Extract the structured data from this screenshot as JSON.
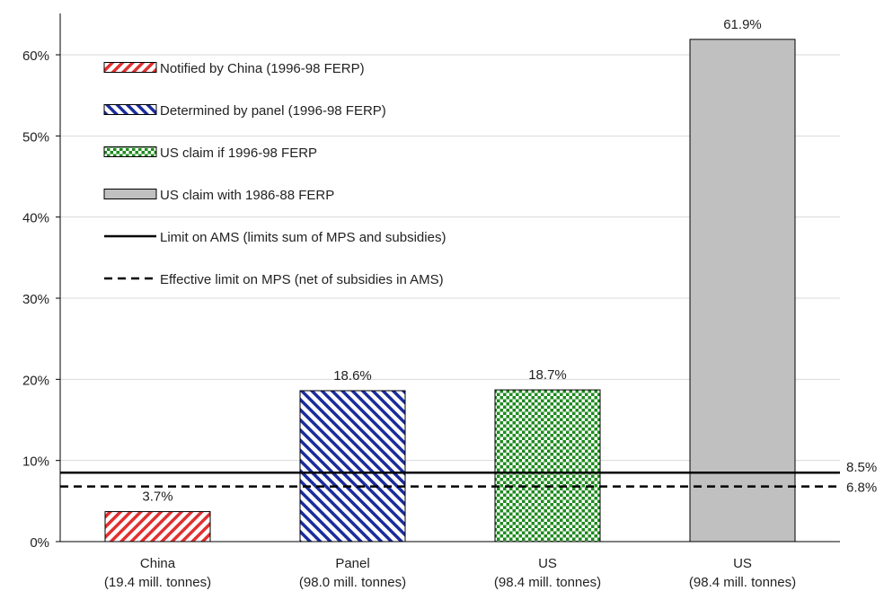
{
  "chart_data": {
    "type": "bar",
    "categories": [
      [
        "China",
        "(19.4 mill. tonnes)"
      ],
      [
        "Panel",
        "(98.0 mill. tonnes)"
      ],
      [
        "US",
        "(98.4 mill. tonnes)"
      ],
      [
        "US",
        "(98.4 mill. tonnes)"
      ]
    ],
    "values": [
      3.7,
      18.6,
      18.7,
      61.9
    ],
    "value_labels": [
      "3.7%",
      "18.6%",
      "18.7%",
      "61.9%"
    ],
    "bar_styles": [
      {
        "pattern": "diag-forward",
        "color": "#e03030"
      },
      {
        "pattern": "diag-back",
        "color": "#1a2c9c"
      },
      {
        "pattern": "checker",
        "color": "#1e8a1e"
      },
      {
        "pattern": "solid",
        "color": "#c0c0c0"
      }
    ],
    "ylim": [
      0,
      65
    ],
    "yticks": [
      0,
      10,
      20,
      30,
      40,
      50,
      60
    ],
    "ytick_labels": [
      "0%",
      "10%",
      "20%",
      "30%",
      "40%",
      "50%",
      "60%"
    ],
    "grid": true,
    "reference_lines": [
      {
        "value": 8.5,
        "label": "8.5%",
        "style": "solid"
      },
      {
        "value": 6.8,
        "label": "6.8%",
        "style": "dashed"
      }
    ],
    "legend": {
      "position": "top-left",
      "entries": [
        {
          "label": "Notified by China (1996-98 FERP)",
          "symbol": "diag-forward",
          "color": "#e03030"
        },
        {
          "label": "Determined by panel (1996-98 FERP)",
          "symbol": "diag-back",
          "color": "#1a2c9c"
        },
        {
          "label": "US claim if 1996-98 FERP",
          "symbol": "checker",
          "color": "#1e8a1e"
        },
        {
          "label": "US claim with 1986-88 FERP",
          "symbol": "solid",
          "color": "#c0c0c0"
        },
        {
          "label": "Limit on AMS (limits sum of MPS and subsidies)",
          "symbol": "line-solid",
          "color": "#000000"
        },
        {
          "label": "Effective limit on MPS (net of subsidies in AMS)",
          "symbol": "line-dashed",
          "color": "#000000"
        }
      ]
    }
  }
}
